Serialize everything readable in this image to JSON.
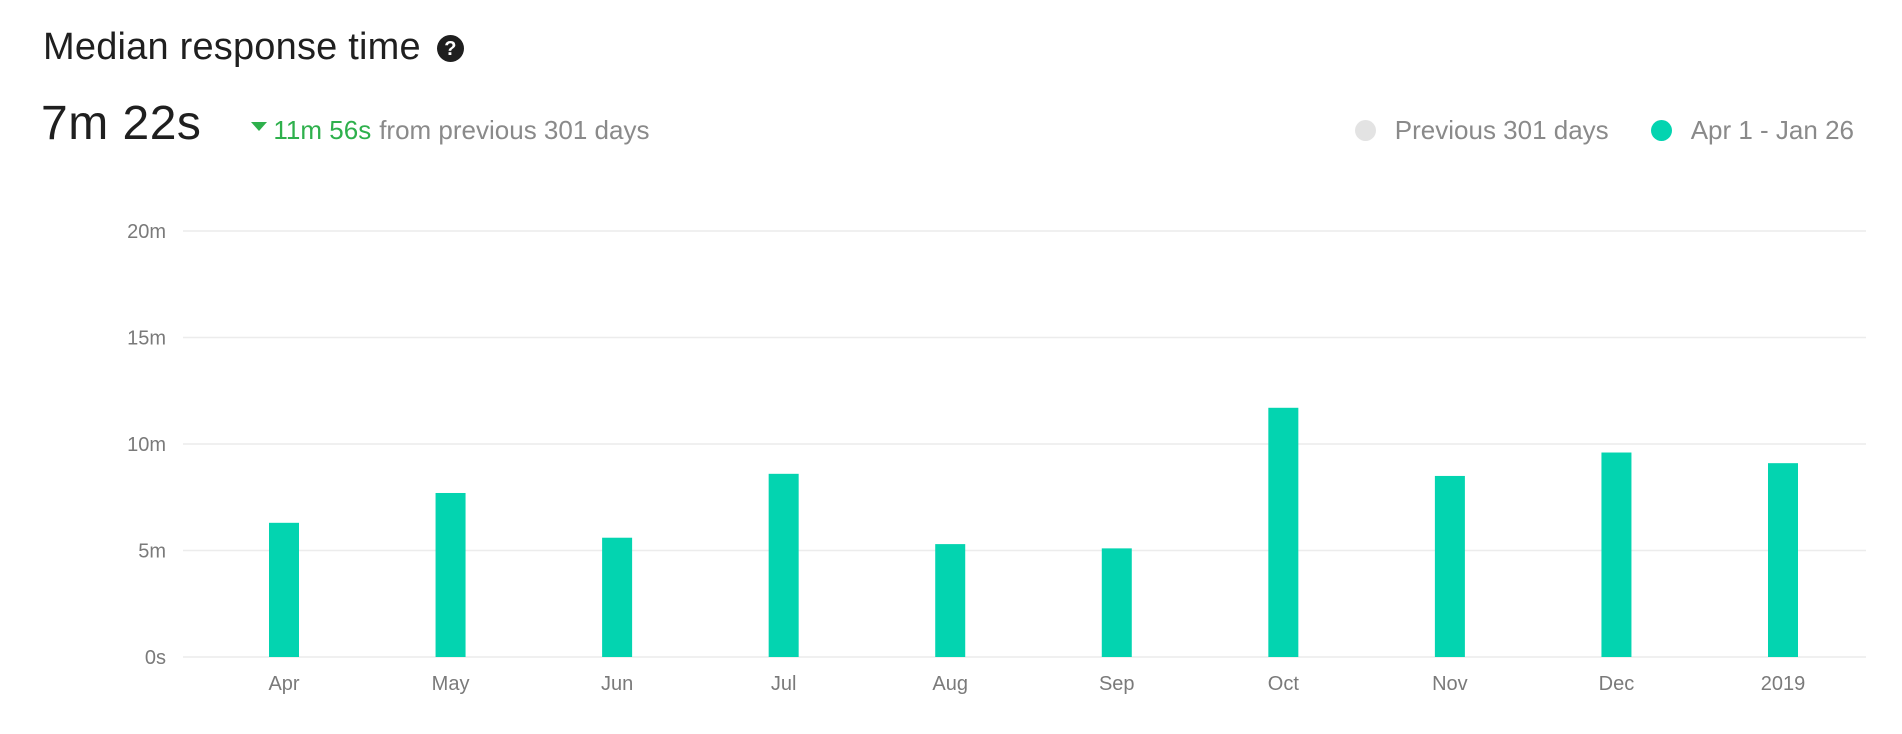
{
  "header": {
    "title": "Median response time",
    "help_icon": "question-circle-icon",
    "value": "7m 22s",
    "delta_direction": "down",
    "delta_value": "11m 56s",
    "delta_text": "from previous 301 days"
  },
  "colors": {
    "current": "#03d4b0",
    "previous": "#e3e3e3",
    "delta_good": "#2eb04c",
    "grid": "#ececec",
    "axis_text": "#7a7a7a"
  },
  "legend": [
    {
      "label": "Previous 301 days",
      "color": "#e3e3e3"
    },
    {
      "label": "Apr 1 - Jan 26",
      "color": "#03d4b0"
    }
  ],
  "chart_data": {
    "type": "bar",
    "categories": [
      "Apr",
      "May",
      "Jun",
      "Jul",
      "Aug",
      "Sep",
      "Oct",
      "Nov",
      "Dec",
      "2019"
    ],
    "series": [
      {
        "name": "Apr 1 - Jan 26",
        "values": [
          6.3,
          7.7,
          5.6,
          8.6,
          5.3,
          5.1,
          11.7,
          8.5,
          9.6,
          9.1
        ]
      }
    ],
    "ylim": [
      0,
      20
    ],
    "yticks": [
      0,
      5,
      10,
      15,
      20
    ],
    "ytick_labels": [
      "0s",
      "5m",
      "10m",
      "15m",
      "20m"
    ],
    "grid": true,
    "legend_position": "top-right"
  }
}
